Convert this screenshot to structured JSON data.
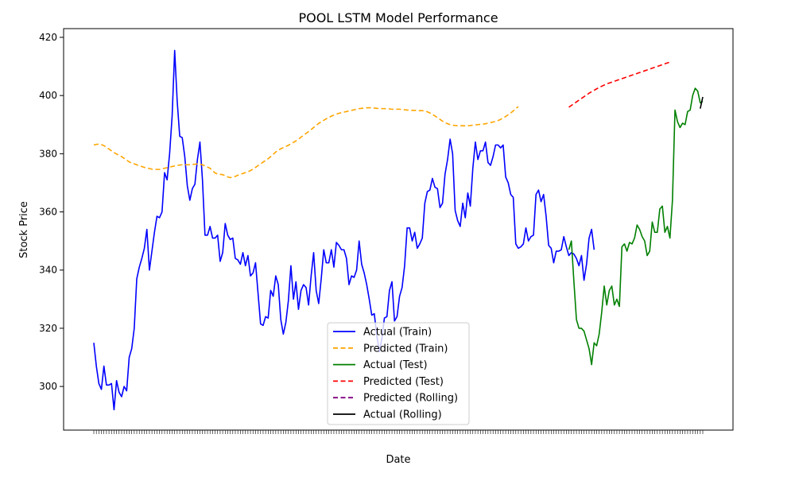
{
  "chart_data": {
    "type": "line",
    "title": "POOL LSTM Model Performance",
    "xlabel": "Date",
    "ylabel": "Stock Price",
    "ylim": [
      285,
      423
    ],
    "yticks": [
      300,
      320,
      340,
      360,
      380,
      400,
      420
    ],
    "x_tick_labels_note": "dense overlapping date labels",
    "grid": false,
    "legend_position": "lower-center",
    "series": [
      {
        "name": "Actual (Train)",
        "color": "#0000ff",
        "style": "solid",
        "start_index": 0,
        "values": [
          315.0,
          307.0,
          301.0,
          299.0,
          307.0,
          300.5,
          300.5,
          301.0,
          292.0,
          302.0,
          298.0,
          296.5,
          300.0,
          298.5,
          310.0,
          313.0,
          320.0,
          337.0,
          341.0,
          344.0,
          347.5,
          354.0,
          340.0,
          346.5,
          353.0,
          358.5,
          358.0,
          360.0,
          373.5,
          371.0,
          380.0,
          393.0,
          415.5,
          398.0,
          386.0,
          385.5,
          379.0,
          369.0,
          364.0,
          368.0,
          369.5,
          378.0,
          384.0,
          371.0,
          352.0,
          352.0,
          355.0,
          351.0,
          351.0,
          352.0,
          343.0,
          346.0,
          356.0,
          352.0,
          350.5,
          351.0,
          344.0,
          343.5,
          342.0,
          346.0,
          341.5,
          345.0,
          338.0,
          339.0,
          342.5,
          332.0,
          321.5,
          321.0,
          324.0,
          323.5,
          333.0,
          331.0,
          338.0,
          335.0,
          323.0,
          318.0,
          322.0,
          329.5,
          341.5,
          330.0,
          336.0,
          326.5,
          333.0,
          335.0,
          334.0,
          328.0,
          338.0,
          346.0,
          333.0,
          328.5,
          337.0,
          347.0,
          342.5,
          342.5,
          347.0,
          341.0,
          349.5,
          348.5,
          347.0,
          347.0,
          344.0,
          335.0,
          338.0,
          337.5,
          340.0,
          350.0,
          342.0,
          339.0,
          335.0,
          330.0,
          324.5,
          325.0,
          317.5,
          312.0,
          316.5,
          323.5,
          324.0,
          333.0,
          336.0,
          322.5,
          324.0,
          331.0,
          334.0,
          341.5,
          354.5,
          354.5,
          350.0,
          353.0,
          347.5,
          349.0,
          351.0,
          363.0,
          367.0,
          367.5,
          371.5,
          368.5,
          368.0,
          361.5,
          363.0,
          373.0,
          378.0,
          385.0,
          380.0,
          360.5,
          357.0,
          355.0,
          363.0,
          358.0,
          366.5,
          362.0,
          375.0,
          384.0,
          378.0,
          381.0,
          381.0,
          384.0,
          377.0,
          376.0,
          379.0,
          383.0,
          383.0,
          382.0,
          383.0,
          372.0,
          370.0,
          366.0,
          365.0,
          349.0,
          347.5,
          348.0,
          349.0,
          354.5,
          350.0,
          351.5,
          352.0,
          366.0,
          367.5,
          363.5,
          366.0,
          358.5,
          348.5,
          347.5,
          342.5,
          346.5,
          346.5,
          347.0,
          351.5,
          348.0,
          345.0,
          346.0,
          345.5,
          344.0,
          341.5,
          345.0,
          336.5,
          342.0,
          351.0,
          354.0,
          347.0
        ]
      },
      {
        "name": "Predicted (Train)",
        "color": "#ffa500",
        "style": "dashed",
        "start_index": 0,
        "values": [
          383.0,
          383.2,
          383.3,
          383.1,
          382.8,
          382.2,
          381.6,
          381.0,
          380.4,
          379.9,
          379.4,
          379.0,
          378.4,
          377.8,
          377.2,
          376.8,
          376.5,
          376.2,
          375.9,
          375.6,
          375.3,
          375.1,
          374.9,
          374.7,
          374.6,
          374.6,
          374.6,
          374.8,
          375.0,
          375.2,
          375.4,
          375.6,
          375.8,
          376.0,
          376.1,
          376.2,
          376.2,
          376.2,
          376.2,
          376.3,
          376.4,
          376.5,
          376.4,
          376.2,
          375.8,
          375.4,
          375.0,
          374.2,
          373.4,
          373.0,
          372.9,
          372.8,
          372.4,
          372.0,
          371.8,
          371.9,
          372.2,
          372.6,
          373.0,
          373.2,
          373.5,
          373.8,
          374.2,
          374.7,
          375.3,
          375.9,
          376.5,
          377.1,
          377.7,
          378.3,
          379.0,
          379.8,
          380.6,
          381.2,
          381.7,
          382.1,
          382.5,
          382.9,
          383.4,
          383.9,
          384.4,
          385.0,
          385.7,
          386.3,
          387.0,
          387.6,
          388.3,
          389.0,
          389.7,
          390.4,
          391.0,
          391.5,
          392.0,
          392.5,
          392.9,
          393.3,
          393.6,
          393.9,
          394.1,
          394.3,
          394.5,
          394.7,
          394.9,
          395.1,
          395.3,
          395.5,
          395.6,
          395.7,
          395.8,
          395.8,
          395.8,
          395.7,
          395.6,
          395.5,
          395.5,
          395.5,
          395.4,
          395.4,
          395.3,
          395.3,
          395.3,
          395.3,
          395.2,
          395.1,
          395.0,
          395.0,
          394.9,
          394.9,
          394.9,
          394.8,
          394.8,
          394.7,
          394.4,
          394.0,
          393.5,
          393.0,
          392.4,
          391.8,
          391.2,
          390.7,
          390.3,
          390.0,
          389.8,
          389.7,
          389.6,
          389.6,
          389.6,
          389.6,
          389.6,
          389.7,
          389.8,
          389.9,
          390.0,
          390.1,
          390.2,
          390.3,
          390.5,
          390.7,
          390.9,
          391.1,
          391.4,
          391.8,
          392.3,
          392.8,
          393.4,
          394.0,
          394.7,
          395.5,
          396.2
        ]
      },
      {
        "name": "Actual (Test)",
        "color": "#008000",
        "style": "solid",
        "start_index": 188,
        "values": [
          347.0,
          350.0,
          336.0,
          323.0,
          320.0,
          320.0,
          319.0,
          316.0,
          313.0,
          307.5,
          315.0,
          314.0,
          318.0,
          325.5,
          334.5,
          328.0,
          333.0,
          334.5,
          328.0,
          330.0,
          327.5,
          348.0,
          349.0,
          346.5,
          349.5,
          349.0,
          351.0,
          355.5,
          354.0,
          351.5,
          350.0,
          345.0,
          346.5,
          356.5,
          353.0,
          353.0,
          361.0,
          362.0,
          353.0,
          355.0,
          351.0,
          364.0,
          395.0,
          391.0,
          389.0,
          390.5,
          390.0,
          394.5,
          395.0,
          400.0,
          402.5,
          401.5,
          397.5,
          398.0
        ]
      },
      {
        "name": "Predicted (Test)",
        "color": "#ff0000",
        "style": "dashed",
        "start_index": 188,
        "values": [
          396.0,
          396.6,
          397.2,
          397.8,
          398.4,
          399.0,
          399.6,
          400.2,
          400.8,
          401.3,
          401.8,
          402.3,
          402.8,
          403.2,
          403.6,
          404.0,
          404.3,
          404.6,
          404.9,
          405.2,
          405.5,
          405.8,
          406.1,
          406.4,
          406.7,
          407.0,
          407.3,
          407.6,
          407.9,
          408.2,
          408.5,
          408.8,
          409.1,
          409.4,
          409.7,
          410.0,
          410.3,
          410.6,
          410.9,
          411.2,
          411.5
        ]
      },
      {
        "name": "Predicted (Rolling)",
        "color": "#800080",
        "style": "dashed",
        "start_index": 241,
        "values": []
      },
      {
        "name": "Actual (Rolling)",
        "color": "#000000",
        "style": "solid",
        "start_index": 240,
        "values": [
          395.5,
          399.5
        ]
      }
    ]
  }
}
